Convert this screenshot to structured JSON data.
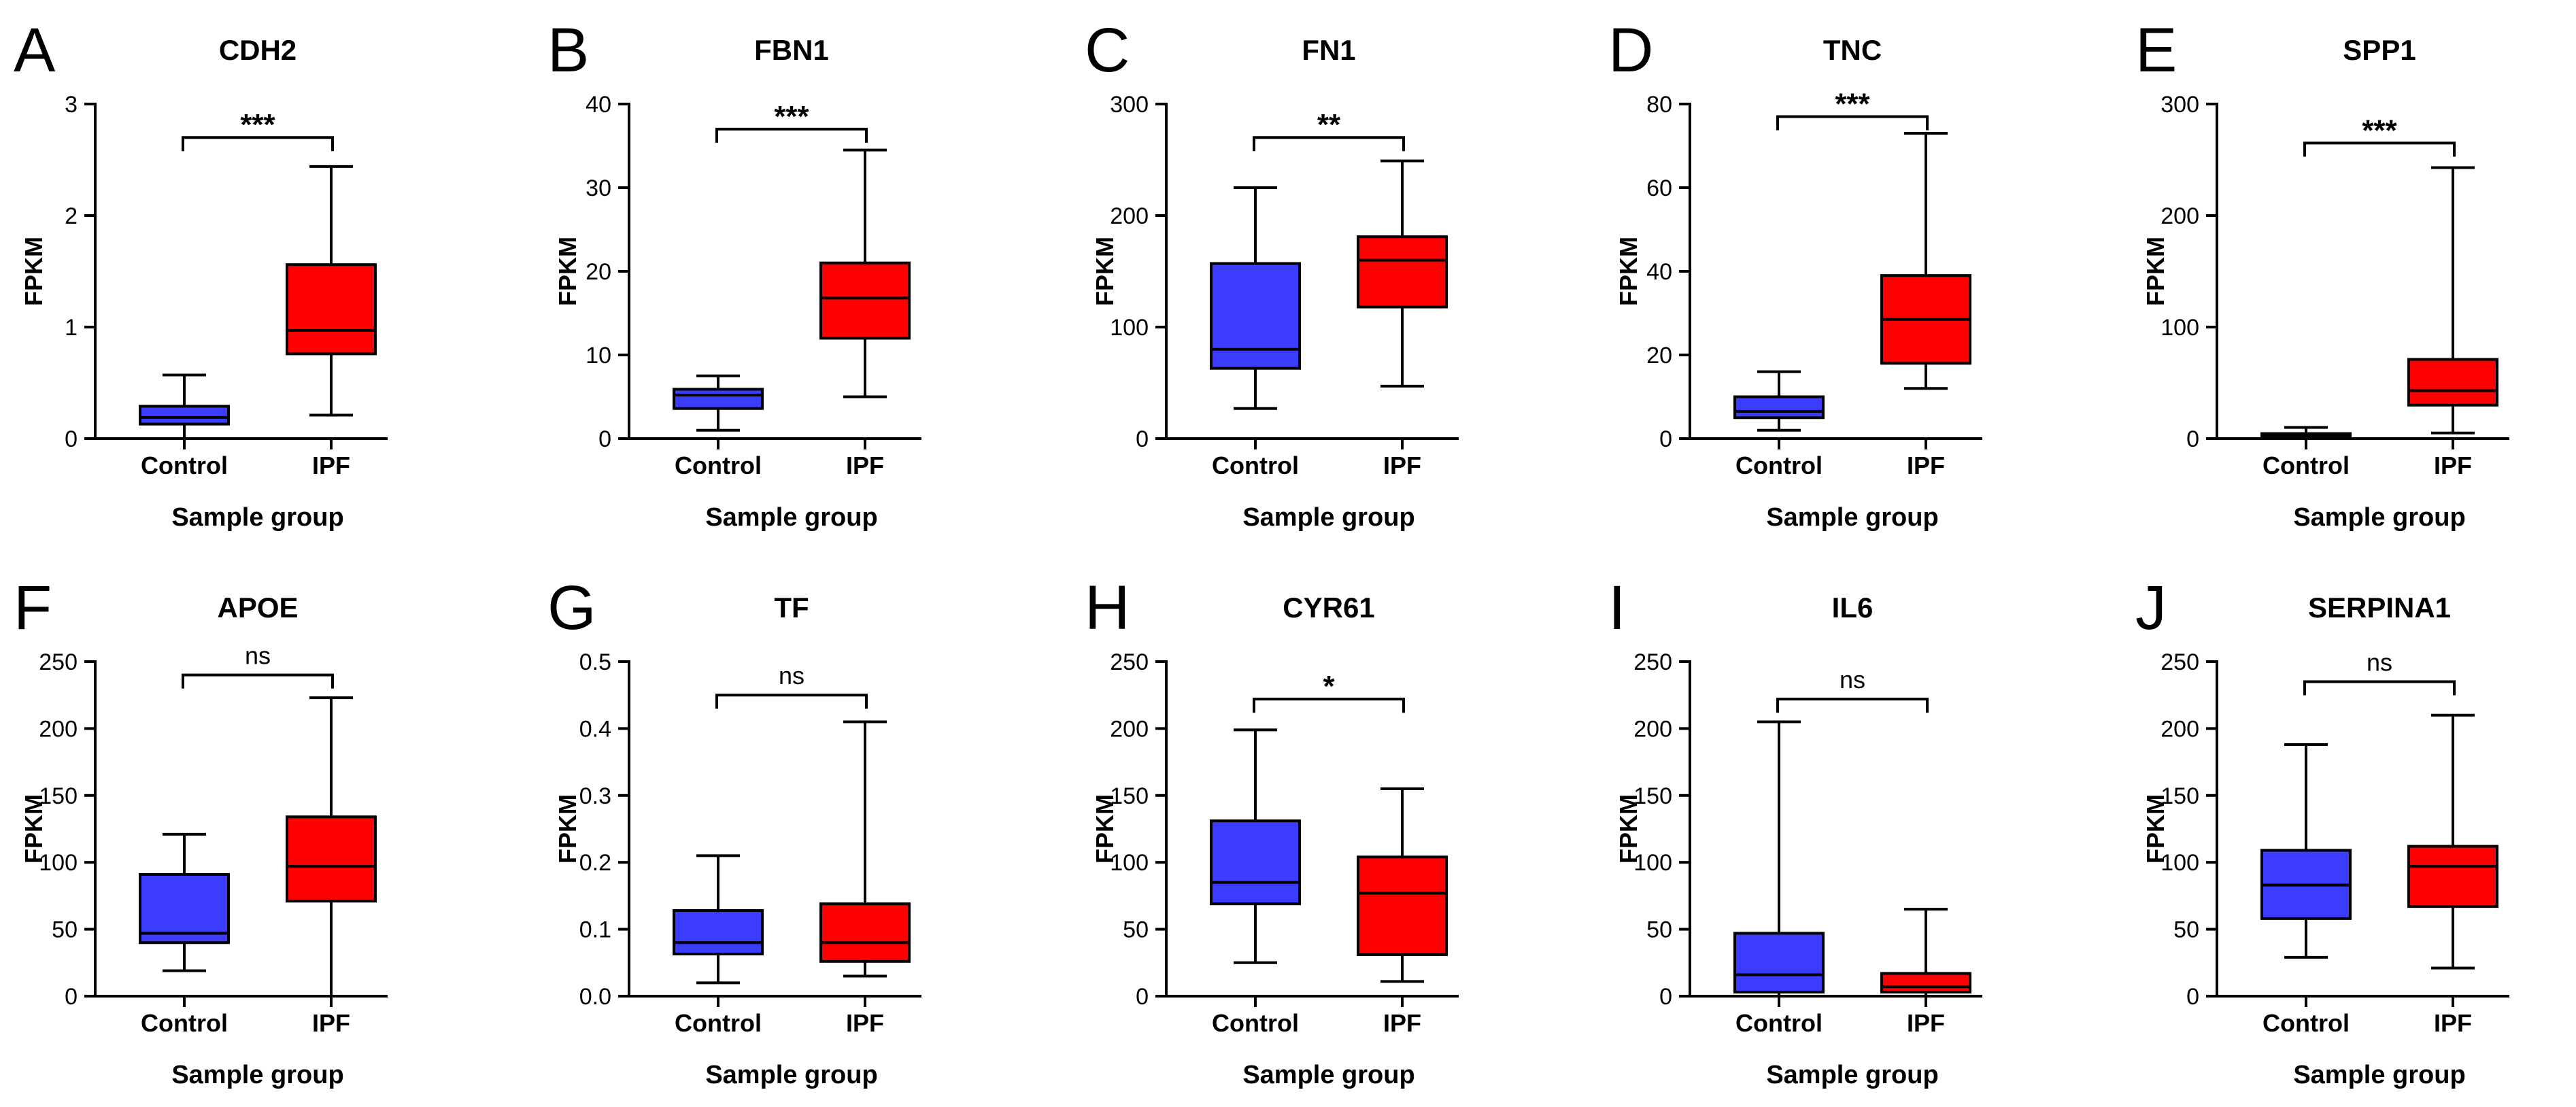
{
  "colors": {
    "control": "#3c3cff",
    "ipf": "#ff0000",
    "axis": "#000000"
  },
  "chart_data": [
    {
      "type": "box",
      "panel_label": "A",
      "title": "CDH2",
      "xlabel": "Sample group",
      "ylabel": "FPKM",
      "categories": [
        "Control",
        "IPF"
      ],
      "ylim": [
        0,
        3
      ],
      "yticks": [
        "0",
        "1",
        "2",
        "3"
      ],
      "significance": "***",
      "bracket_y": 2.7,
      "series": [
        {
          "name": "Control",
          "min": 0.0,
          "q1": 0.13,
          "median": 0.19,
          "q3": 0.29,
          "max": 0.57
        },
        {
          "name": "IPF",
          "min": 0.21,
          "q1": 0.76,
          "median": 0.97,
          "q3": 1.56,
          "max": 2.44
        }
      ]
    },
    {
      "type": "box",
      "panel_label": "B",
      "title": "FBN1",
      "xlabel": "Sample group",
      "ylabel": "FPKM",
      "categories": [
        "Control",
        "IPF"
      ],
      "ylim": [
        0,
        40
      ],
      "yticks": [
        "0",
        "10",
        "20",
        "30",
        "40"
      ],
      "significance": "***",
      "bracket_y": 37,
      "series": [
        {
          "name": "Control",
          "min": 1.0,
          "q1": 3.6,
          "median": 5.2,
          "q3": 5.9,
          "max": 7.5
        },
        {
          "name": "IPF",
          "min": 5.0,
          "q1": 12,
          "median": 16.8,
          "q3": 21,
          "max": 34.5
        }
      ]
    },
    {
      "type": "box",
      "panel_label": "C",
      "title": "FN1",
      "xlabel": "Sample group",
      "ylabel": "FPKM",
      "categories": [
        "Control",
        "IPF"
      ],
      "ylim": [
        0,
        300
      ],
      "yticks": [
        "0",
        "100",
        "200",
        "300"
      ],
      "significance": "**",
      "bracket_y": 270,
      "series": [
        {
          "name": "Control",
          "min": 27,
          "q1": 63,
          "median": 80,
          "q3": 157,
          "max": 225
        },
        {
          "name": "IPF",
          "min": 47,
          "q1": 118,
          "median": 160,
          "q3": 181,
          "max": 249
        }
      ]
    },
    {
      "type": "box",
      "panel_label": "D",
      "title": "TNC",
      "xlabel": "Sample group",
      "ylabel": "FPKM",
      "categories": [
        "Control",
        "IPF"
      ],
      "ylim": [
        0,
        80
      ],
      "yticks": [
        "0",
        "20",
        "40",
        "60",
        "80"
      ],
      "significance": "***",
      "bracket_y": 77,
      "series": [
        {
          "name": "Control",
          "min": 2,
          "q1": 5,
          "median": 6.5,
          "q3": 10,
          "max": 16
        },
        {
          "name": "IPF",
          "min": 12,
          "q1": 18,
          "median": 28.5,
          "q3": 39,
          "max": 73
        }
      ]
    },
    {
      "type": "box",
      "panel_label": "E",
      "title": "SPP1",
      "xlabel": "Sample group",
      "ylabel": "FPKM",
      "categories": [
        "Control",
        "IPF"
      ],
      "ylim": [
        0,
        300
      ],
      "yticks": [
        "0",
        "100",
        "200",
        "300"
      ],
      "significance": "***",
      "bracket_y": 265,
      "series": [
        {
          "name": "Control",
          "min": 0.5,
          "q1": 2,
          "median": 3,
          "q3": 4.5,
          "max": 10
        },
        {
          "name": "IPF",
          "min": 5,
          "q1": 30,
          "median": 43,
          "q3": 71,
          "max": 243
        }
      ]
    },
    {
      "type": "box",
      "panel_label": "F",
      "title": "APOE",
      "xlabel": "Sample group",
      "ylabel": "FPKM",
      "categories": [
        "Control",
        "IPF"
      ],
      "ylim": [
        0,
        250
      ],
      "yticks": [
        "0",
        "50",
        "100",
        "150",
        "200",
        "250"
      ],
      "significance": "ns",
      "bracket_y": 240,
      "series": [
        {
          "name": "Control",
          "min": 19,
          "q1": 40,
          "median": 47,
          "q3": 91,
          "max": 121
        },
        {
          "name": "IPF",
          "min": 0,
          "q1": 71,
          "median": 97,
          "q3": 134,
          "max": 223
        }
      ]
    },
    {
      "type": "box",
      "panel_label": "G",
      "title": "TF",
      "xlabel": "Sample group",
      "ylabel": "FPKM",
      "categories": [
        "Control",
        "IPF"
      ],
      "ylim": [
        0,
        0.5
      ],
      "yticks": [
        "0.0",
        "0.1",
        "0.2",
        "0.3",
        "0.4",
        "0.5"
      ],
      "significance": "ns",
      "bracket_y": 0.45,
      "series": [
        {
          "name": "Control",
          "min": 0.02,
          "q1": 0.063,
          "median": 0.08,
          "q3": 0.128,
          "max": 0.21
        },
        {
          "name": "IPF",
          "min": 0.03,
          "q1": 0.052,
          "median": 0.08,
          "q3": 0.138,
          "max": 0.41
        }
      ]
    },
    {
      "type": "box",
      "panel_label": "H",
      "title": "CYR61",
      "xlabel": "Sample group",
      "ylabel": "FPKM",
      "categories": [
        "Control",
        "IPF"
      ],
      "ylim": [
        0,
        250
      ],
      "yticks": [
        "0",
        "50",
        "100",
        "150",
        "200",
        "250"
      ],
      "significance": "*",
      "bracket_y": 222,
      "series": [
        {
          "name": "Control",
          "min": 25,
          "q1": 69,
          "median": 85,
          "q3": 131,
          "max": 199
        },
        {
          "name": "IPF",
          "min": 11,
          "q1": 31,
          "median": 77,
          "q3": 104,
          "max": 155
        }
      ]
    },
    {
      "type": "box",
      "panel_label": "I",
      "title": "IL6",
      "xlabel": "Sample group",
      "ylabel": "FPKM",
      "categories": [
        "Control",
        "IPF"
      ],
      "ylim": [
        0,
        250
      ],
      "yticks": [
        "0",
        "50",
        "100",
        "150",
        "200",
        "250"
      ],
      "significance": "ns",
      "bracket_y": 222,
      "series": [
        {
          "name": "Control",
          "min": 0,
          "q1": 3,
          "median": 16,
          "q3": 47,
          "max": 205
        },
        {
          "name": "IPF",
          "min": 0,
          "q1": 3,
          "median": 7,
          "q3": 17,
          "max": 65
        }
      ]
    },
    {
      "type": "box",
      "panel_label": "J",
      "title": "SERPINA1",
      "xlabel": "Sample group",
      "ylabel": "FPKM",
      "categories": [
        "Control",
        "IPF"
      ],
      "ylim": [
        0,
        250
      ],
      "yticks": [
        "0",
        "50",
        "100",
        "150",
        "200",
        "250"
      ],
      "significance": "ns",
      "bracket_y": 235,
      "series": [
        {
          "name": "Control",
          "min": 29,
          "q1": 58,
          "median": 83,
          "q3": 109,
          "max": 188
        },
        {
          "name": "IPF",
          "min": 21,
          "q1": 67,
          "median": 97,
          "q3": 112,
          "max": 210
        }
      ]
    }
  ]
}
